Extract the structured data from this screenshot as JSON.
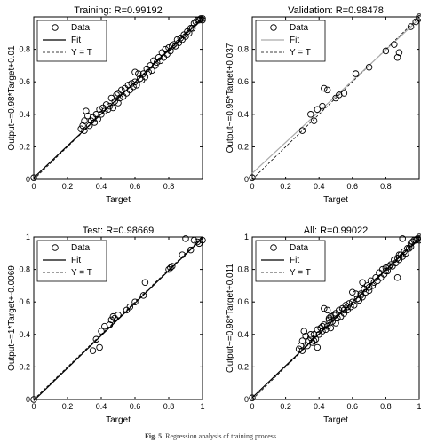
{
  "caption": {
    "label": "Fig. 5",
    "text": "Regression analysis of training process"
  },
  "chart_data": [
    {
      "type": "scatter",
      "title": "Training: R=0.99192",
      "xlabel": "Target",
      "ylabel": "Output~=0.98*Target+0.01",
      "xlim": [
        0,
        1
      ],
      "ylim": [
        0,
        1
      ],
      "xticks": [
        0,
        0.2,
        0.4,
        0.6,
        0.8
      ],
      "yticks": [
        0,
        0.2,
        0.4,
        0.6,
        0.8
      ],
      "legend": {
        "placement": "top-left",
        "entries": [
          "Data",
          "Fit",
          "Y = T"
        ]
      },
      "fit": {
        "slope": 0.98,
        "intercept": 0.01
      },
      "grid": false,
      "series": [
        {
          "points": [
            [
              0,
              0.01
            ],
            [
              0.28,
              0.31
            ],
            [
              0.29,
              0.33
            ],
            [
              0.3,
              0.3
            ],
            [
              0.3,
              0.36
            ],
            [
              0.31,
              0.42
            ],
            [
              0.32,
              0.39
            ],
            [
              0.33,
              0.33
            ],
            [
              0.34,
              0.36
            ],
            [
              0.35,
              0.38
            ],
            [
              0.36,
              0.35
            ],
            [
              0.37,
              0.4
            ],
            [
              0.38,
              0.37
            ],
            [
              0.39,
              0.43
            ],
            [
              0.4,
              0.4
            ],
            [
              0.41,
              0.44
            ],
            [
              0.42,
              0.42
            ],
            [
              0.43,
              0.46
            ],
            [
              0.44,
              0.43
            ],
            [
              0.45,
              0.45
            ],
            [
              0.46,
              0.5
            ],
            [
              0.47,
              0.44
            ],
            [
              0.48,
              0.48
            ],
            [
              0.49,
              0.52
            ],
            [
              0.5,
              0.47
            ],
            [
              0.5,
              0.53
            ],
            [
              0.51,
              0.5
            ],
            [
              0.52,
              0.55
            ],
            [
              0.53,
              0.51
            ],
            [
              0.54,
              0.56
            ],
            [
              0.55,
              0.53
            ],
            [
              0.56,
              0.58
            ],
            [
              0.57,
              0.55
            ],
            [
              0.58,
              0.59
            ],
            [
              0.59,
              0.57
            ],
            [
              0.6,
              0.6
            ],
            [
              0.6,
              0.66
            ],
            [
              0.61,
              0.58
            ],
            [
              0.62,
              0.65
            ],
            [
              0.63,
              0.62
            ],
            [
              0.64,
              0.61
            ],
            [
              0.65,
              0.65
            ],
            [
              0.66,
              0.63
            ],
            [
              0.67,
              0.68
            ],
            [
              0.68,
              0.66
            ],
            [
              0.69,
              0.7
            ],
            [
              0.7,
              0.67
            ],
            [
              0.71,
              0.73
            ],
            [
              0.72,
              0.7
            ],
            [
              0.73,
              0.72
            ],
            [
              0.74,
              0.75
            ],
            [
              0.75,
              0.73
            ],
            [
              0.76,
              0.78
            ],
            [
              0.77,
              0.75
            ],
            [
              0.78,
              0.8
            ],
            [
              0.79,
              0.77
            ],
            [
              0.8,
              0.81
            ],
            [
              0.81,
              0.79
            ],
            [
              0.82,
              0.82
            ],
            [
              0.83,
              0.83
            ],
            [
              0.84,
              0.82
            ],
            [
              0.85,
              0.86
            ],
            [
              0.86,
              0.84
            ],
            [
              0.87,
              0.87
            ],
            [
              0.88,
              0.86
            ],
            [
              0.89,
              0.89
            ],
            [
              0.9,
              0.88
            ],
            [
              0.91,
              0.91
            ],
            [
              0.92,
              0.9
            ],
            [
              0.93,
              0.93
            ],
            [
              0.94,
              0.93
            ],
            [
              0.95,
              0.96
            ],
            [
              0.96,
              0.97
            ],
            [
              0.97,
              0.98
            ],
            [
              0.98,
              0.98
            ],
            [
              0.99,
              0.99
            ],
            [
              1,
              0.99
            ],
            [
              1,
              0.98
            ]
          ]
        }
      ]
    },
    {
      "type": "scatter",
      "title": "Validation: R=0.98478",
      "xlabel": "Target",
      "ylabel": "Output~=0.95*Target+0.037",
      "xlim": [
        0,
        1
      ],
      "ylim": [
        0,
        1
      ],
      "xticks": [
        0,
        0.2,
        0.4,
        0.6,
        0.8
      ],
      "yticks": [
        0,
        0.2,
        0.4,
        0.6,
        0.8
      ],
      "legend": {
        "placement": "top-left",
        "entries": [
          "Data",
          "Fit",
          "Y = T"
        ]
      },
      "fit": {
        "slope": 0.95,
        "intercept": 0.037
      },
      "grid": false,
      "series": [
        {
          "points": [
            [
              0,
              0.01
            ],
            [
              0.3,
              0.3
            ],
            [
              0.35,
              0.4
            ],
            [
              0.37,
              0.36
            ],
            [
              0.39,
              0.43
            ],
            [
              0.42,
              0.45
            ],
            [
              0.43,
              0.56
            ],
            [
              0.45,
              0.55
            ],
            [
              0.5,
              0.5
            ],
            [
              0.52,
              0.52
            ],
            [
              0.55,
              0.53
            ],
            [
              0.62,
              0.65
            ],
            [
              0.7,
              0.69
            ],
            [
              0.8,
              0.79
            ],
            [
              0.85,
              0.83
            ],
            [
              0.87,
              0.75
            ],
            [
              0.88,
              0.78
            ],
            [
              0.95,
              0.94
            ],
            [
              0.98,
              0.97
            ],
            [
              1,
              1
            ],
            [
              1,
              0.99
            ]
          ]
        }
      ]
    },
    {
      "type": "scatter",
      "title": "Test: R=0.98669",
      "xlabel": "Target",
      "ylabel": "Output~=1*Target+-0.0069",
      "xlim": [
        0,
        1
      ],
      "ylim": [
        0,
        1
      ],
      "xticks": [
        0,
        0.2,
        0.4,
        0.6,
        0.8,
        1
      ],
      "yticks": [
        0,
        0.2,
        0.4,
        0.6,
        0.8,
        1
      ],
      "legend": {
        "placement": "top-left",
        "entries": [
          "Data",
          "Fit",
          "Y = T"
        ]
      },
      "fit": {
        "slope": 1,
        "intercept": -0.0069
      },
      "grid": false,
      "series": [
        {
          "points": [
            [
              0,
              0
            ],
            [
              0.35,
              0.3
            ],
            [
              0.37,
              0.37
            ],
            [
              0.39,
              0.32
            ],
            [
              0.4,
              0.42
            ],
            [
              0.42,
              0.45
            ],
            [
              0.45,
              0.46
            ],
            [
              0.46,
              0.49
            ],
            [
              0.47,
              0.51
            ],
            [
              0.48,
              0.5
            ],
            [
              0.5,
              0.52
            ],
            [
              0.55,
              0.55
            ],
            [
              0.57,
              0.57
            ],
            [
              0.6,
              0.6
            ],
            [
              0.65,
              0.64
            ],
            [
              0.66,
              0.72
            ],
            [
              0.8,
              0.8
            ],
            [
              0.81,
              0.81
            ],
            [
              0.82,
              0.82
            ],
            [
              0.88,
              0.89
            ],
            [
              0.9,
              0.99
            ],
            [
              0.93,
              0.92
            ],
            [
              0.95,
              0.98
            ],
            [
              0.97,
              0.97
            ],
            [
              0.98,
              0.96
            ],
            [
              1,
              0.98
            ]
          ]
        }
      ]
    },
    {
      "type": "scatter",
      "title": "All: R=0.99022",
      "xlabel": "Target",
      "ylabel": "Output~=0.98*Target+0.011",
      "xlim": [
        0,
        1
      ],
      "ylim": [
        0,
        1
      ],
      "xticks": [
        0,
        0.2,
        0.4,
        0.6,
        0.8,
        1
      ],
      "yticks": [
        0,
        0.2,
        0.4,
        0.6,
        0.8,
        1
      ],
      "legend": {
        "placement": "top-left",
        "entries": [
          "Data",
          "Fit",
          "Y = T"
        ]
      },
      "fit": {
        "slope": 0.98,
        "intercept": 0.011
      },
      "grid": false,
      "series": [
        {
          "points": [
            [
              0,
              0.01
            ],
            [
              0.28,
              0.31
            ],
            [
              0.29,
              0.33
            ],
            [
              0.3,
              0.3
            ],
            [
              0.3,
              0.36
            ],
            [
              0.31,
              0.42
            ],
            [
              0.32,
              0.39
            ],
            [
              0.33,
              0.33
            ],
            [
              0.34,
              0.36
            ],
            [
              0.35,
              0.38
            ],
            [
              0.35,
              0.4
            ],
            [
              0.36,
              0.35
            ],
            [
              0.37,
              0.4
            ],
            [
              0.37,
              0.36
            ],
            [
              0.38,
              0.37
            ],
            [
              0.39,
              0.43
            ],
            [
              0.39,
              0.32
            ],
            [
              0.4,
              0.4
            ],
            [
              0.41,
              0.44
            ],
            [
              0.42,
              0.42
            ],
            [
              0.42,
              0.45
            ],
            [
              0.43,
              0.46
            ],
            [
              0.43,
              0.56
            ],
            [
              0.44,
              0.43
            ],
            [
              0.45,
              0.45
            ],
            [
              0.45,
              0.55
            ],
            [
              0.46,
              0.5
            ],
            [
              0.46,
              0.49
            ],
            [
              0.47,
              0.44
            ],
            [
              0.47,
              0.51
            ],
            [
              0.48,
              0.48
            ],
            [
              0.49,
              0.52
            ],
            [
              0.5,
              0.47
            ],
            [
              0.5,
              0.53
            ],
            [
              0.5,
              0.52
            ],
            [
              0.51,
              0.5
            ],
            [
              0.52,
              0.55
            ],
            [
              0.53,
              0.51
            ],
            [
              0.54,
              0.56
            ],
            [
              0.55,
              0.53
            ],
            [
              0.55,
              0.55
            ],
            [
              0.56,
              0.58
            ],
            [
              0.57,
              0.55
            ],
            [
              0.57,
              0.57
            ],
            [
              0.58,
              0.59
            ],
            [
              0.59,
              0.57
            ],
            [
              0.6,
              0.6
            ],
            [
              0.6,
              0.66
            ],
            [
              0.61,
              0.58
            ],
            [
              0.62,
              0.65
            ],
            [
              0.63,
              0.62
            ],
            [
              0.64,
              0.61
            ],
            [
              0.65,
              0.65
            ],
            [
              0.65,
              0.64
            ],
            [
              0.66,
              0.63
            ],
            [
              0.66,
              0.72
            ],
            [
              0.67,
              0.68
            ],
            [
              0.68,
              0.66
            ],
            [
              0.69,
              0.7
            ],
            [
              0.7,
              0.67
            ],
            [
              0.7,
              0.69
            ],
            [
              0.71,
              0.73
            ],
            [
              0.72,
              0.7
            ],
            [
              0.73,
              0.72
            ],
            [
              0.74,
              0.75
            ],
            [
              0.75,
              0.73
            ],
            [
              0.76,
              0.78
            ],
            [
              0.77,
              0.75
            ],
            [
              0.78,
              0.8
            ],
            [
              0.79,
              0.77
            ],
            [
              0.8,
              0.81
            ],
            [
              0.8,
              0.79
            ],
            [
              0.81,
              0.79
            ],
            [
              0.82,
              0.82
            ],
            [
              0.83,
              0.83
            ],
            [
              0.84,
              0.82
            ],
            [
              0.85,
              0.86
            ],
            [
              0.86,
              0.84
            ],
            [
              0.87,
              0.75
            ],
            [
              0.87,
              0.87
            ],
            [
              0.88,
              0.86
            ],
            [
              0.88,
              0.89
            ],
            [
              0.89,
              0.89
            ],
            [
              0.9,
              0.88
            ],
            [
              0.9,
              0.99
            ],
            [
              0.91,
              0.91
            ],
            [
              0.92,
              0.9
            ],
            [
              0.93,
              0.93
            ],
            [
              0.94,
              0.93
            ],
            [
              0.95,
              0.96
            ],
            [
              0.95,
              0.94
            ],
            [
              0.96,
              0.97
            ],
            [
              0.97,
              0.98
            ],
            [
              0.98,
              0.98
            ],
            [
              0.99,
              0.99
            ],
            [
              1,
              0.99
            ],
            [
              1,
              0.98
            ],
            [
              1,
              1
            ]
          ]
        }
      ]
    }
  ]
}
